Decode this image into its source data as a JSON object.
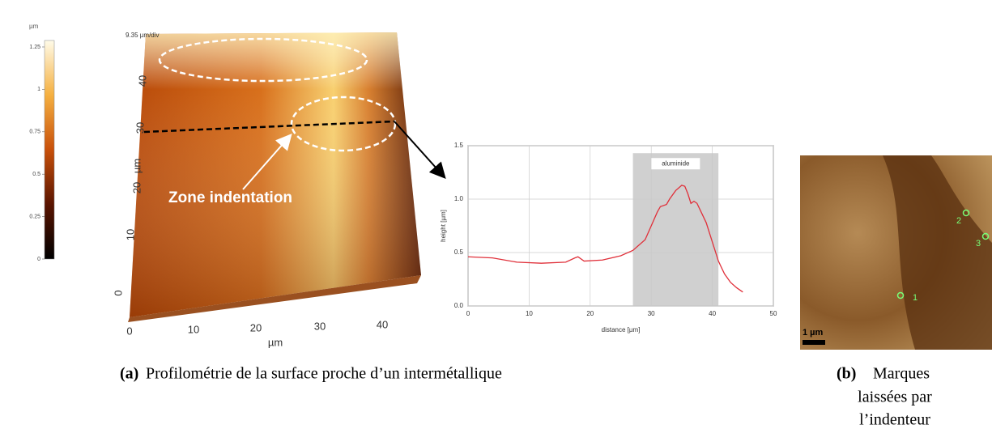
{
  "figure_a": {
    "colorbar": {
      "unit": "µm",
      "lim": [
        0,
        1.25
      ],
      "ticks": [
        "1.25",
        "1",
        "0.75",
        "0.5",
        "0.25",
        "0"
      ],
      "tick_values": [
        1.25,
        1,
        0.75,
        0.5,
        0.25,
        0
      ]
    },
    "scale_label": "9.35 µm/div",
    "y_axis": {
      "ticks": [
        "40",
        "30",
        "20",
        "10",
        "0"
      ],
      "unit": "µm"
    },
    "x_axis": {
      "ticks": [
        "0",
        "10",
        "20",
        "30",
        "40"
      ],
      "unit": "µm"
    },
    "annotation": "Zone indentation",
    "caption_label": "(a)",
    "caption": "Profilométrie de la surface proche d’un intermétallique"
  },
  "chart_data": {
    "type": "line",
    "x_label": "distance [µm]",
    "y_label": "height [µm]",
    "band_label": "aluminide",
    "band_x": [
      27,
      41
    ],
    "band_top": 1.43,
    "band_color": "#c8c8c8",
    "x": [
      0,
      4,
      8,
      12,
      16,
      17.5,
      18,
      19,
      22,
      25,
      27,
      29,
      30,
      31,
      31.5,
      32.5,
      33,
      34,
      35,
      35.5,
      36,
      36.5,
      37,
      37.5,
      39,
      40,
      41,
      42,
      43,
      44,
      45
    ],
    "series": [
      {
        "color": "#e0303a",
        "values": [
          0.46,
          0.45,
          0.41,
          0.4,
          0.41,
          0.45,
          0.46,
          0.42,
          0.43,
          0.47,
          0.52,
          0.62,
          0.75,
          0.88,
          0.93,
          0.95,
          1.0,
          1.08,
          1.13,
          1.12,
          1.05,
          0.96,
          0.98,
          0.96,
          0.78,
          0.6,
          0.42,
          0.3,
          0.22,
          0.17,
          0.13
        ]
      }
    ],
    "xlim": [
      0,
      50
    ],
    "ylim": [
      0,
      1.5
    ],
    "xticks": [
      0,
      10,
      20,
      30,
      40,
      50
    ],
    "yticks": [
      {
        "value": 0,
        "label": "0.0"
      },
      0.5,
      {
        "value": 1,
        "label": "1.0"
      },
      1.5
    ],
    "grid": true
  },
  "figure_b": {
    "markers": [
      "1",
      "2",
      "3"
    ],
    "scale_bar": "1 µm",
    "caption_label": "(b)",
    "caption_lines": [
      "Marques",
      "laissées par",
      "l’indenteur"
    ]
  }
}
